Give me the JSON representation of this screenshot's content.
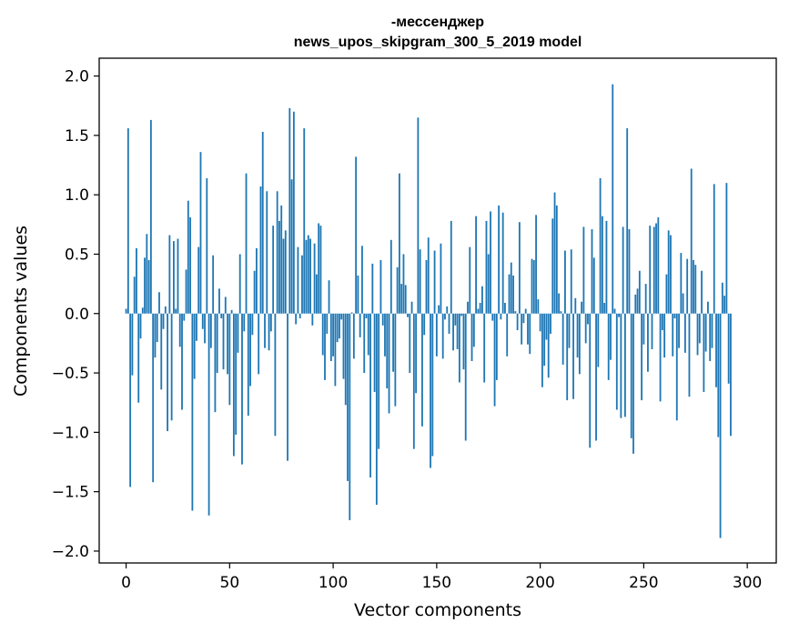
{
  "chart_data": {
    "type": "bar",
    "title_line1": "-мессенджер",
    "title_line2": "news_upos_skipgram_300_5_2019 model",
    "xlabel": "Vector components",
    "ylabel": "Components values",
    "xlim": [
      -13,
      314
    ],
    "ylim": [
      -2.1,
      2.15
    ],
    "xticks": [
      0,
      50,
      100,
      150,
      200,
      250,
      300
    ],
    "yticks": [
      -2.0,
      -1.5,
      -1.0,
      -0.5,
      0.0,
      0.5,
      1.0,
      1.5,
      2.0
    ],
    "ytick_labels": [
      "−2.0",
      "−1.5",
      "−1.0",
      "−0.5",
      "0.0",
      "0.5",
      "1.0",
      "1.5",
      "2.0"
    ],
    "xtick_labels": [
      "0",
      "50",
      "100",
      "150",
      "200",
      "250",
      "300"
    ],
    "bar_color": "#1f77b4",
    "values": [
      0.04,
      1.56,
      -1.46,
      -0.52,
      0.31,
      0.55,
      -0.75,
      -0.21,
      0.05,
      0.47,
      0.67,
      0.45,
      1.63,
      -1.42,
      -0.37,
      -0.24,
      0.18,
      -0.64,
      -0.13,
      0.06,
      -0.99,
      0.66,
      -0.9,
      0.61,
      0.04,
      0.63,
      -0.28,
      -0.81,
      -0.06,
      0.37,
      0.95,
      0.81,
      -1.66,
      -0.55,
      -0.23,
      0.56,
      1.36,
      -0.13,
      -0.25,
      1.14,
      -1.7,
      -0.29,
      0.49,
      -0.83,
      -0.5,
      0.21,
      -0.04,
      -0.47,
      0.14,
      -0.51,
      -0.77,
      0.03,
      -1.2,
      -1.02,
      -0.33,
      0.5,
      -1.27,
      -0.15,
      1.18,
      -0.86,
      -0.61,
      -0.18,
      0.36,
      0.55,
      -0.51,
      1.07,
      1.53,
      -0.29,
      1.03,
      -0.31,
      -0.15,
      0.74,
      -1.03,
      1.03,
      0.78,
      0.91,
      0.63,
      0.7,
      -1.24,
      1.73,
      1.13,
      1.7,
      -0.09,
      0.56,
      -0.04,
      0.49,
      1.56,
      0.62,
      0.66,
      0.63,
      -0.1,
      0.59,
      0.33,
      0.76,
      0.74,
      -0.35,
      -0.56,
      -0.17,
      0.28,
      -0.4,
      -0.36,
      -0.61,
      -0.24,
      -0.21,
      -0.05,
      -0.55,
      -0.77,
      -1.41,
      -1.74,
      0.01,
      -0.38,
      1.32,
      0.32,
      -0.2,
      0.57,
      -0.5,
      -0.04,
      -0.35,
      -1.38,
      0.42,
      -0.66,
      -1.61,
      -1.14,
      0.45,
      -0.1,
      -0.36,
      -0.63,
      -0.84,
      0.62,
      -0.49,
      -0.78,
      0.39,
      1.18,
      0.25,
      0.5,
      0.24,
      -0.03,
      -0.5,
      0.1,
      -1.14,
      -0.67,
      1.65,
      0.54,
      -0.95,
      -0.18,
      0.45,
      0.64,
      -1.3,
      -1.2,
      0.53,
      -0.36,
      0.07,
      0.59,
      -0.38,
      -0.05,
      0.06,
      -0.17,
      0.78,
      -0.31,
      -0.1,
      -0.3,
      -0.58,
      -0.02,
      -0.47,
      -1.07,
      0.1,
      0.56,
      -0.4,
      -0.28,
      0.82,
      0.04,
      0.09,
      0.23,
      -0.58,
      0.78,
      0.5,
      0.86,
      -0.06,
      -0.78,
      -0.56,
      0.91,
      -0.05,
      0.85,
      0.09,
      -0.36,
      0.33,
      0.43,
      0.32,
      0.02,
      -0.14,
      0.77,
      -0.26,
      -0.08,
      0.04,
      -0.26,
      -0.34,
      0.46,
      0.45,
      0.83,
      0.12,
      -0.15,
      -0.62,
      -0.44,
      -0.22,
      -0.54,
      -0.17,
      0.8,
      1.02,
      0.91,
      0.17,
      0.02,
      -0.43,
      0.53,
      -0.73,
      -0.29,
      0.54,
      -0.72,
      0.13,
      -0.37,
      -0.51,
      0.1,
      0.73,
      -0.25,
      -0.09,
      -1.13,
      0.71,
      0.47,
      -1.07,
      -0.45,
      1.14,
      0.82,
      0.09,
      0.78,
      -0.56,
      -0.39,
      1.93,
      0.04,
      -0.81,
      -0.03,
      -0.88,
      0.73,
      -0.87,
      1.56,
      0.71,
      -1.05,
      -1.18,
      0.16,
      0.21,
      0.36,
      -0.73,
      -0.26,
      0.25,
      -0.49,
      0.74,
      -0.3,
      0.73,
      0.76,
      0.81,
      -0.74,
      -0.14,
      -0.37,
      0.33,
      0.7,
      0.66,
      -0.36,
      -0.04,
      -0.9,
      -0.29,
      0.51,
      0.17,
      -0.33,
      0.46,
      -0.7,
      1.22,
      0.45,
      0.41,
      -0.35,
      -0.25,
      0.36,
      -0.66,
      -0.32,
      0.1,
      -0.4,
      -0.29,
      1.09,
      -0.62,
      -1.04,
      -1.89,
      0.26,
      0.15,
      1.1,
      -0.59,
      -1.03
    ]
  }
}
